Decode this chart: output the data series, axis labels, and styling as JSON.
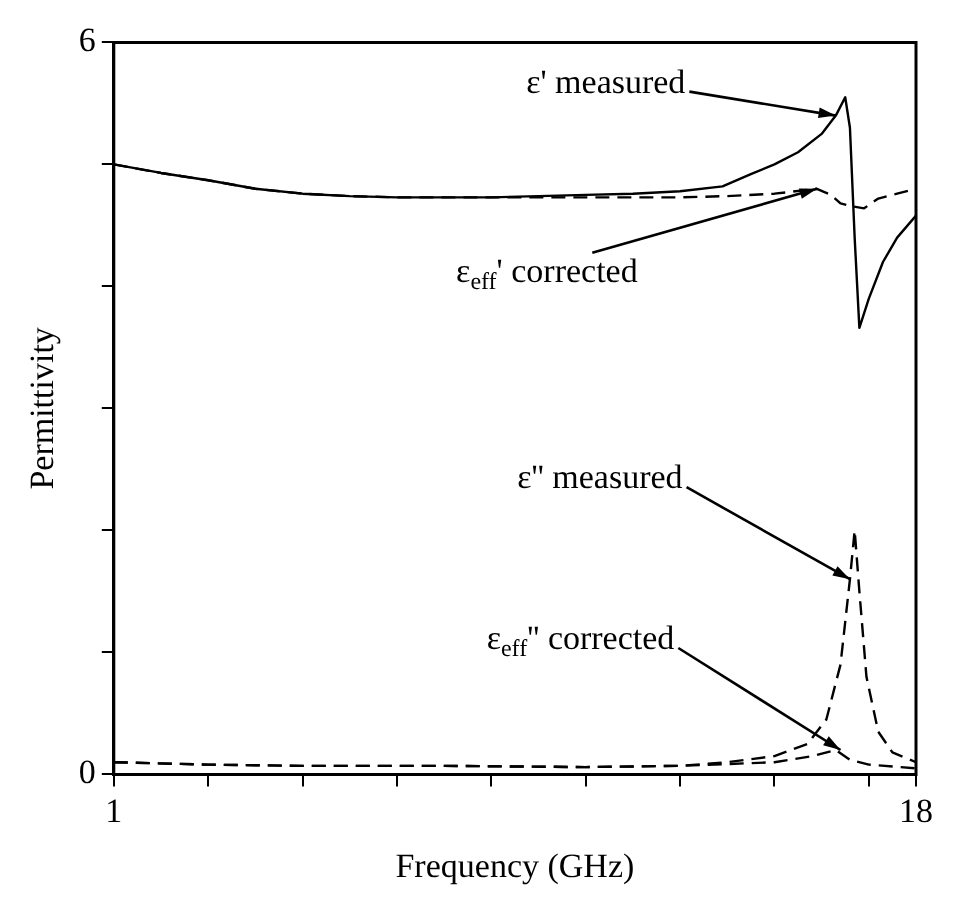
{
  "chart_data": {
    "type": "line",
    "xlabel": "Frequency (GHz)",
    "ylabel": "Permittivity",
    "xlim": [
      1,
      18
    ],
    "ylim": [
      0,
      6
    ],
    "xticks": [
      1,
      {
        "value": 3,
        "label": null
      },
      {
        "value": 5,
        "label": null
      },
      {
        "value": 7,
        "label": null
      },
      {
        "value": 9,
        "label": null
      },
      {
        "value": 11,
        "label": null
      },
      {
        "value": 13,
        "label": null
      },
      {
        "value": 15,
        "label": null
      },
      {
        "value": 17,
        "label": null
      },
      18
    ],
    "yticks": [
      0,
      {
        "value": 1,
        "label": null
      },
      {
        "value": 2,
        "label": null
      },
      {
        "value": 3,
        "label": null
      },
      {
        "value": 4,
        "label": null
      },
      {
        "value": 5,
        "label": null
      },
      6
    ],
    "grid": false,
    "series": [
      {
        "color": "#000000",
        "line_style": "solid",
        "x": [
          1,
          2,
          3,
          4,
          5,
          6,
          7,
          8,
          9,
          10,
          11,
          12,
          13,
          13.9,
          14.5,
          15,
          15.5,
          16,
          16.3,
          16.5,
          16.6,
          16.7,
          16.8,
          17,
          17.3,
          17.6,
          18
        ],
        "values": [
          5.0,
          4.93,
          4.87,
          4.8,
          4.76,
          4.74,
          4.73,
          4.73,
          4.73,
          4.74,
          4.75,
          4.76,
          4.78,
          4.82,
          4.92,
          5.0,
          5.1,
          5.25,
          5.4,
          5.55,
          5.3,
          4.4,
          3.66,
          3.9,
          4.2,
          4.4,
          4.58
        ]
      },
      {
        "color": "#000000",
        "line_style": "dashed",
        "x": [
          1,
          2,
          3,
          4,
          5,
          6,
          7,
          8,
          9,
          10,
          11,
          12,
          13,
          14,
          15,
          15.9,
          16.2,
          16.4,
          16.6,
          16.9,
          17.2,
          17.6,
          18
        ],
        "values": [
          5.0,
          4.93,
          4.87,
          4.8,
          4.76,
          4.74,
          4.73,
          4.73,
          4.73,
          4.73,
          4.73,
          4.73,
          4.73,
          4.74,
          4.76,
          4.8,
          4.75,
          4.68,
          4.66,
          4.64,
          4.72,
          4.76,
          4.8
        ]
      },
      {
        "color": "#000000",
        "line_style": "dashed",
        "x": [
          1,
          3,
          5,
          8,
          11,
          13,
          14,
          15,
          15.7,
          16.1,
          16.4,
          16.6,
          16.7,
          16.8,
          16.95,
          17.2,
          17.5,
          18
        ],
        "values": [
          0.1,
          0.08,
          0.07,
          0.07,
          0.06,
          0.07,
          0.1,
          0.15,
          0.25,
          0.45,
          0.9,
          1.6,
          2.0,
          1.5,
          0.8,
          0.35,
          0.18,
          0.1
        ]
      },
      {
        "color": "#000000",
        "line_style": "dashed",
        "x": [
          1,
          3,
          5,
          8,
          11,
          13,
          15,
          15.8,
          16.3,
          16.6,
          17,
          18
        ],
        "values": [
          0.1,
          0.08,
          0.07,
          0.07,
          0.06,
          0.07,
          0.1,
          0.15,
          0.2,
          0.12,
          0.08,
          0.05
        ]
      }
    ],
    "annotations": [
      {
        "text": "ε' measured",
        "x": 16.3,
        "y": 5.4
      },
      {
        "text": "ε$_{eff}$' corrected",
        "x": 15.9,
        "y": 4.8
      },
      {
        "text": "ε'' measured",
        "x": 16.6,
        "y": 1.6
      },
      {
        "text": "ε$_{eff}$'' corrected",
        "x": 16.4,
        "y": 0.2
      }
    ]
  }
}
